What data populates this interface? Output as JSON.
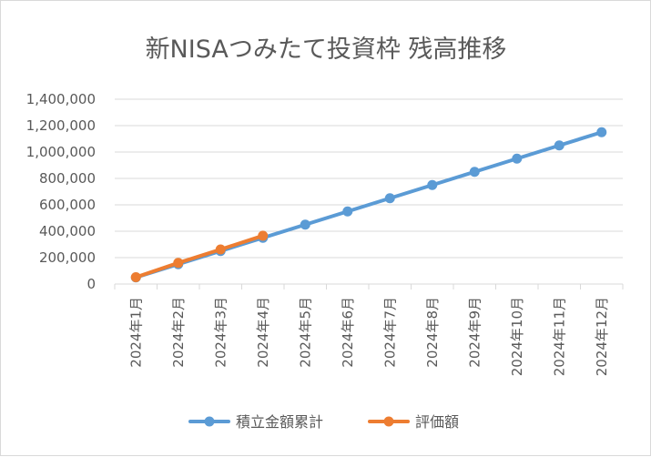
{
  "chart_data": {
    "type": "line",
    "title": "新NISAつみたて投資枠 残高推移",
    "categories": [
      "2024年1月",
      "2024年2月",
      "2024年3月",
      "2024年4月",
      "2024年5月",
      "2024年6月",
      "2024年7月",
      "2024年8月",
      "2024年9月",
      "2024年10月",
      "2024年11月",
      "2024年12月"
    ],
    "series": [
      {
        "name": "積立金額累計",
        "color": "#5b9bd5",
        "values": [
          50000,
          150000,
          250000,
          350000,
          450000,
          550000,
          650000,
          750000,
          850000,
          950000,
          1050000,
          1150000
        ]
      },
      {
        "name": "評価額",
        "color": "#ed7d31",
        "values": [
          52000,
          160000,
          262000,
          366000,
          null,
          null,
          null,
          null,
          null,
          null,
          null,
          null
        ]
      }
    ],
    "ylim": [
      0,
      1400000
    ],
    "yticks": [
      "0",
      "200,000",
      "400,000",
      "600,000",
      "800,000",
      "1,000,000",
      "1,200,000",
      "1,400,000"
    ],
    "grid": true,
    "legend": "bottom"
  }
}
